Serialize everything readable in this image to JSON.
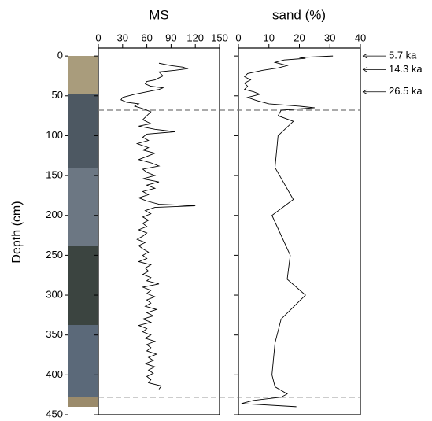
{
  "chart_data": [
    {
      "type": "line",
      "title": "MS",
      "ylabel": "Depth (cm)",
      "depth": [
        9,
        12,
        14,
        16,
        18,
        20,
        25,
        30,
        32,
        35,
        38,
        40,
        42,
        45,
        48,
        52,
        55,
        58,
        60,
        63,
        66,
        70,
        75,
        80,
        85,
        88,
        92,
        95,
        98,
        102,
        106,
        110,
        115,
        118,
        122,
        126,
        130,
        134,
        138,
        142,
        146,
        150,
        154,
        158,
        162,
        166,
        170,
        174,
        178,
        182,
        186,
        188,
        190,
        194,
        198,
        202,
        206,
        210,
        214,
        218,
        222,
        226,
        230,
        234,
        238,
        242,
        246,
        250,
        254,
        258,
        262,
        266,
        270,
        274,
        278,
        282,
        286,
        290,
        294,
        298,
        302,
        306,
        310,
        314,
        318,
        322,
        326,
        330,
        334,
        338,
        342,
        346,
        350,
        354,
        358,
        362,
        366,
        370,
        374,
        378,
        382,
        386,
        390,
        394,
        398,
        402,
        406,
        410,
        414,
        418
      ],
      "values": [
        75,
        90,
        105,
        110,
        95,
        75,
        80,
        70,
        60,
        58,
        65,
        80,
        75,
        60,
        45,
        30,
        28,
        35,
        50,
        45,
        55,
        65,
        60,
        55,
        65,
        50,
        70,
        95,
        60,
        55,
        62,
        48,
        62,
        55,
        70,
        60,
        50,
        65,
        75,
        55,
        60,
        70,
        55,
        75,
        60,
        70,
        55,
        62,
        50,
        60,
        75,
        120,
        70,
        58,
        65,
        55,
        62,
        55,
        60,
        50,
        60,
        55,
        48,
        58,
        50,
        55,
        62,
        55,
        60,
        50,
        65,
        58,
        62,
        55,
        65,
        60,
        75,
        55,
        65,
        60,
        70,
        60,
        65,
        58,
        72,
        60,
        68,
        55,
        65,
        50,
        60,
        55,
        65,
        58,
        70,
        60,
        65,
        60,
        72,
        62,
        68,
        58,
        70,
        62,
        68,
        60,
        65,
        62,
        78,
        75
      ],
      "xlim": [
        0,
        150
      ],
      "xticks": [
        0,
        30,
        60,
        90,
        120,
        150
      ],
      "ylim": [
        -10,
        450
      ],
      "yticks": [
        0,
        50,
        100,
        150,
        200,
        250,
        300,
        350,
        400,
        450
      ],
      "boundaries": [
        68,
        428
      ],
      "color": "#000000"
    },
    {
      "type": "line",
      "title": "sand (%)",
      "depth": [
        0,
        2,
        3,
        5,
        8,
        12,
        15,
        18,
        22,
        26,
        30,
        34,
        38,
        42,
        45,
        48,
        52,
        56,
        60,
        63,
        65,
        68,
        75,
        82,
        100,
        140,
        180,
        200,
        250,
        280,
        300,
        330,
        360,
        400,
        415,
        424,
        428,
        432,
        436,
        440
      ],
      "values": [
        31,
        20,
        22,
        15,
        12,
        16,
        13,
        8,
        3,
        2,
        4,
        2,
        3,
        2,
        5,
        7,
        3,
        6,
        10,
        20,
        25,
        14,
        13,
        18,
        13,
        12,
        18,
        11,
        17,
        16,
        22,
        14,
        12,
        11,
        12,
        16,
        14,
        5,
        1,
        19
      ],
      "xlim": [
        0,
        40
      ],
      "xticks": [
        0,
        10,
        20,
        30,
        40
      ],
      "ylim": [
        -10,
        450
      ],
      "boundaries": [
        68,
        428
      ],
      "color": "#000000",
      "annotations": [
        {
          "text": "5.7 ka",
          "depth": 0
        },
        {
          "text": "14.3 ka",
          "depth": 17
        },
        {
          "text": "26.5 ka",
          "depth": 45
        }
      ]
    }
  ]
}
